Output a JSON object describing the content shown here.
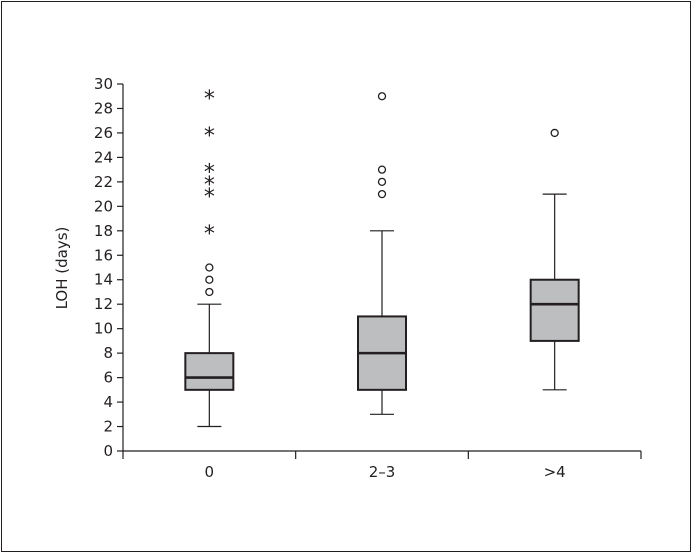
{
  "chart_data": {
    "type": "box",
    "ylabel": "LOH (days)",
    "xlabel": "",
    "ylim": [
      0,
      30
    ],
    "yticks": [
      0,
      2,
      4,
      6,
      8,
      10,
      12,
      14,
      16,
      18,
      20,
      22,
      24,
      26,
      28,
      30
    ],
    "categories": [
      "0",
      "2–3",
      ">4"
    ],
    "boxes": [
      {
        "category": "0",
        "whisker_low": 2,
        "q1": 5,
        "median": 6,
        "q3": 8,
        "whisker_high": 12,
        "outliers_circle": [
          13,
          14,
          15
        ],
        "outliers_extreme": [
          18,
          21,
          22,
          23,
          26,
          29
        ]
      },
      {
        "category": "2–3",
        "whisker_low": 3,
        "q1": 5,
        "median": 8,
        "q3": 11,
        "whisker_high": 18,
        "outliers_circle": [
          21,
          22,
          23,
          29
        ],
        "outliers_extreme": []
      },
      {
        "category": ">4",
        "whisker_low": 5,
        "q1": 9,
        "median": 12,
        "q3": 14,
        "whisker_high": 21,
        "outliers_circle": [
          26
        ],
        "outliers_extreme": []
      }
    ],
    "colors": {
      "box_fill": "#bcbec0",
      "stroke": "#231f20"
    },
    "grid": false
  }
}
